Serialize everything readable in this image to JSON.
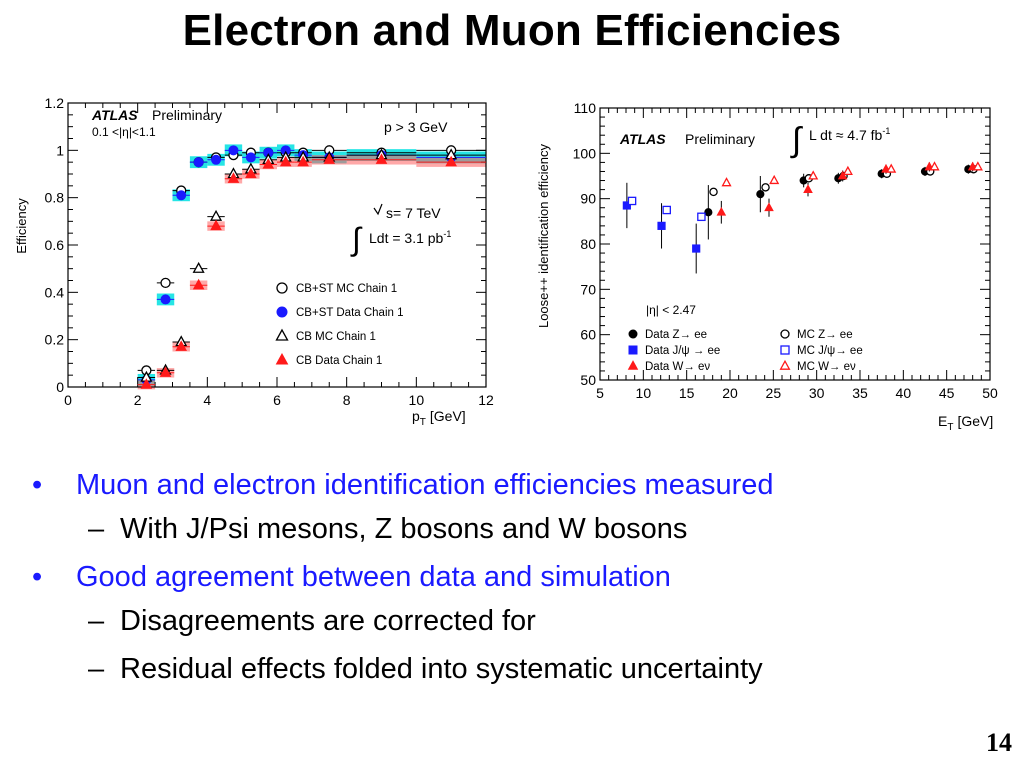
{
  "slide": {
    "title": "Electron and Muon Efficiencies",
    "page_number": "14",
    "bullets": [
      {
        "level": 1,
        "text": "Muon and electron identification efficiencies measured"
      },
      {
        "level": 2,
        "text": "With J/Psi mesons, Z bosons and W bosons"
      },
      {
        "level": 1,
        "text": "Good agreement between data and simulation"
      },
      {
        "level": 2,
        "text": "Disagreements are corrected for"
      },
      {
        "level": 2,
        "text": "Residual effects folded into systematic uncertainty"
      }
    ]
  },
  "colors": {
    "bullet_blue": "#1a1aff",
    "data_blue": "#1a1aff",
    "data_red": "#ff1a1a",
    "band_cyan": "#00e0e0",
    "band_red": "#ff6060"
  },
  "chart_data": [
    {
      "type": "scatter",
      "ylabel": "Efficiency",
      "xlabel_main": "p",
      "xlabel_sub": "T",
      "xlabel_unit": "[GeV]",
      "xlim": [
        0,
        12
      ],
      "ylim": [
        0,
        1.2
      ],
      "x_ticks": [
        "0",
        "2",
        "4",
        "6",
        "8",
        "10",
        "12"
      ],
      "y_ticks": [
        "0",
        "0.2",
        "0.4",
        "0.6",
        "0.8",
        "1",
        "1.2"
      ],
      "atlas": "ATLAS",
      "preliminary": "Preliminary",
      "eta_range": "0.1 <|η|<1.1",
      "pcut": "p > 3 GeV",
      "energy": "s= 7 TeV",
      "lumi_text": "Ldt = 3.1 pb",
      "lumi_sup": "-1",
      "legend_position": "bottom-right",
      "series": [
        {
          "name": "CB+ST MC Chain 1",
          "marker": "open-circle",
          "color": "#000000",
          "x": [
            2.25,
            2.8,
            3.25,
            3.75,
            4.25,
            4.75,
            5.25,
            5.75,
            6.25,
            6.75,
            7.5,
            9.0,
            11.0
          ],
          "y": [
            0.07,
            0.44,
            0.83,
            0.95,
            0.97,
            0.98,
            0.99,
            0.99,
            0.99,
            0.99,
            1.0,
            0.99,
            1.0
          ]
        },
        {
          "name": "CB+ST Data Chain 1",
          "marker": "filled-circle",
          "color": "#1a1aff",
          "x": [
            2.25,
            2.8,
            3.25,
            3.75,
            4.25,
            4.75,
            5.25,
            5.75,
            6.25,
            6.75,
            7.5,
            9.0,
            11.0
          ],
          "y": [
            0.03,
            0.37,
            0.81,
            0.95,
            0.96,
            1.0,
            0.97,
            0.99,
            1.0,
            0.98,
            0.97,
            0.98,
            0.97
          ]
        },
        {
          "name": "CB MC Chain 1",
          "marker": "open-triangle",
          "color": "#000000",
          "x": [
            2.25,
            2.8,
            3.25,
            3.75,
            4.25,
            4.75,
            5.25,
            5.75,
            6.25,
            6.75,
            7.5,
            9.0,
            11.0
          ],
          "y": [
            0.04,
            0.07,
            0.19,
            0.5,
            0.72,
            0.9,
            0.92,
            0.96,
            0.97,
            0.97,
            0.97,
            0.98,
            0.98
          ]
        },
        {
          "name": "CB Data Chain 1",
          "marker": "filled-triangle",
          "color": "#ff1a1a",
          "x": [
            2.25,
            2.8,
            3.25,
            3.75,
            4.25,
            4.75,
            5.25,
            5.75,
            6.25,
            6.75,
            7.5,
            9.0,
            11.0
          ],
          "y": [
            0.01,
            0.06,
            0.17,
            0.43,
            0.68,
            0.88,
            0.9,
            0.94,
            0.95,
            0.95,
            0.96,
            0.96,
            0.95
          ]
        }
      ]
    },
    {
      "type": "scatter",
      "ylabel": "Loose++ identification efficiency",
      "xlabel_main": "E",
      "xlabel_sub": "T",
      "xlabel_unit": "[GeV]",
      "xlim": [
        5,
        50
      ],
      "ylim": [
        50,
        110
      ],
      "x_ticks": [
        "5",
        "10",
        "15",
        "20",
        "25",
        "30",
        "35",
        "40",
        "45",
        "50"
      ],
      "y_ticks": [
        "50",
        "60",
        "70",
        "80",
        "90",
        "100",
        "110"
      ],
      "atlas": "ATLAS",
      "preliminary": "Preliminary",
      "lumi_text": "L dt ≈ 4.7 fb",
      "lumi_sup": "-1",
      "eta_cut": "|η| < 2.47",
      "legend_position": "bottom",
      "series": [
        {
          "name": "Data Z→ ee",
          "marker": "filled-circle",
          "color": "#000000",
          "x": [
            17.5,
            23.5,
            28.5,
            32.5,
            37.5,
            42.5,
            47.5
          ],
          "y": [
            87.0,
            91.0,
            94.0,
            94.5,
            95.5,
            96.0,
            96.5
          ]
        },
        {
          "name": "MC Z→ ee",
          "marker": "open-circle",
          "color": "#000000",
          "x": [
            17.5,
            23.5,
            28.5,
            32.5,
            37.5,
            42.5,
            47.5
          ],
          "y": [
            91.5,
            92.5,
            94.5,
            95.0,
            95.5,
            96.0,
            96.5
          ]
        },
        {
          "name": "Data J/ψ → ee",
          "marker": "filled-square",
          "color": "#1a1aff",
          "x": [
            8.5,
            12.5,
            16.5
          ],
          "y": [
            88.5,
            84.0,
            79.0
          ]
        },
        {
          "name": "MC J/ψ→ ee",
          "marker": "open-square",
          "color": "#1a1aff",
          "x": [
            8.5,
            12.5,
            16.5
          ],
          "y": [
            89.5,
            87.5,
            86.0
          ]
        },
        {
          "name": "Data W→ eν",
          "marker": "filled-triangle",
          "color": "#ff1a1a",
          "x": [
            19.0,
            24.5,
            29.0,
            33.0,
            38.0,
            43.0,
            48.0
          ],
          "y": [
            87.0,
            88.0,
            92.0,
            95.0,
            96.5,
            97.0,
            97.0
          ]
        },
        {
          "name": "MC W→ eν",
          "marker": "open-triangle",
          "color": "#ff1a1a",
          "x": [
            19.0,
            24.5,
            29.0,
            33.0,
            38.0,
            43.0,
            48.0
          ],
          "y": [
            93.5,
            94.0,
            95.0,
            96.0,
            96.5,
            97.0,
            97.0
          ]
        }
      ]
    }
  ]
}
